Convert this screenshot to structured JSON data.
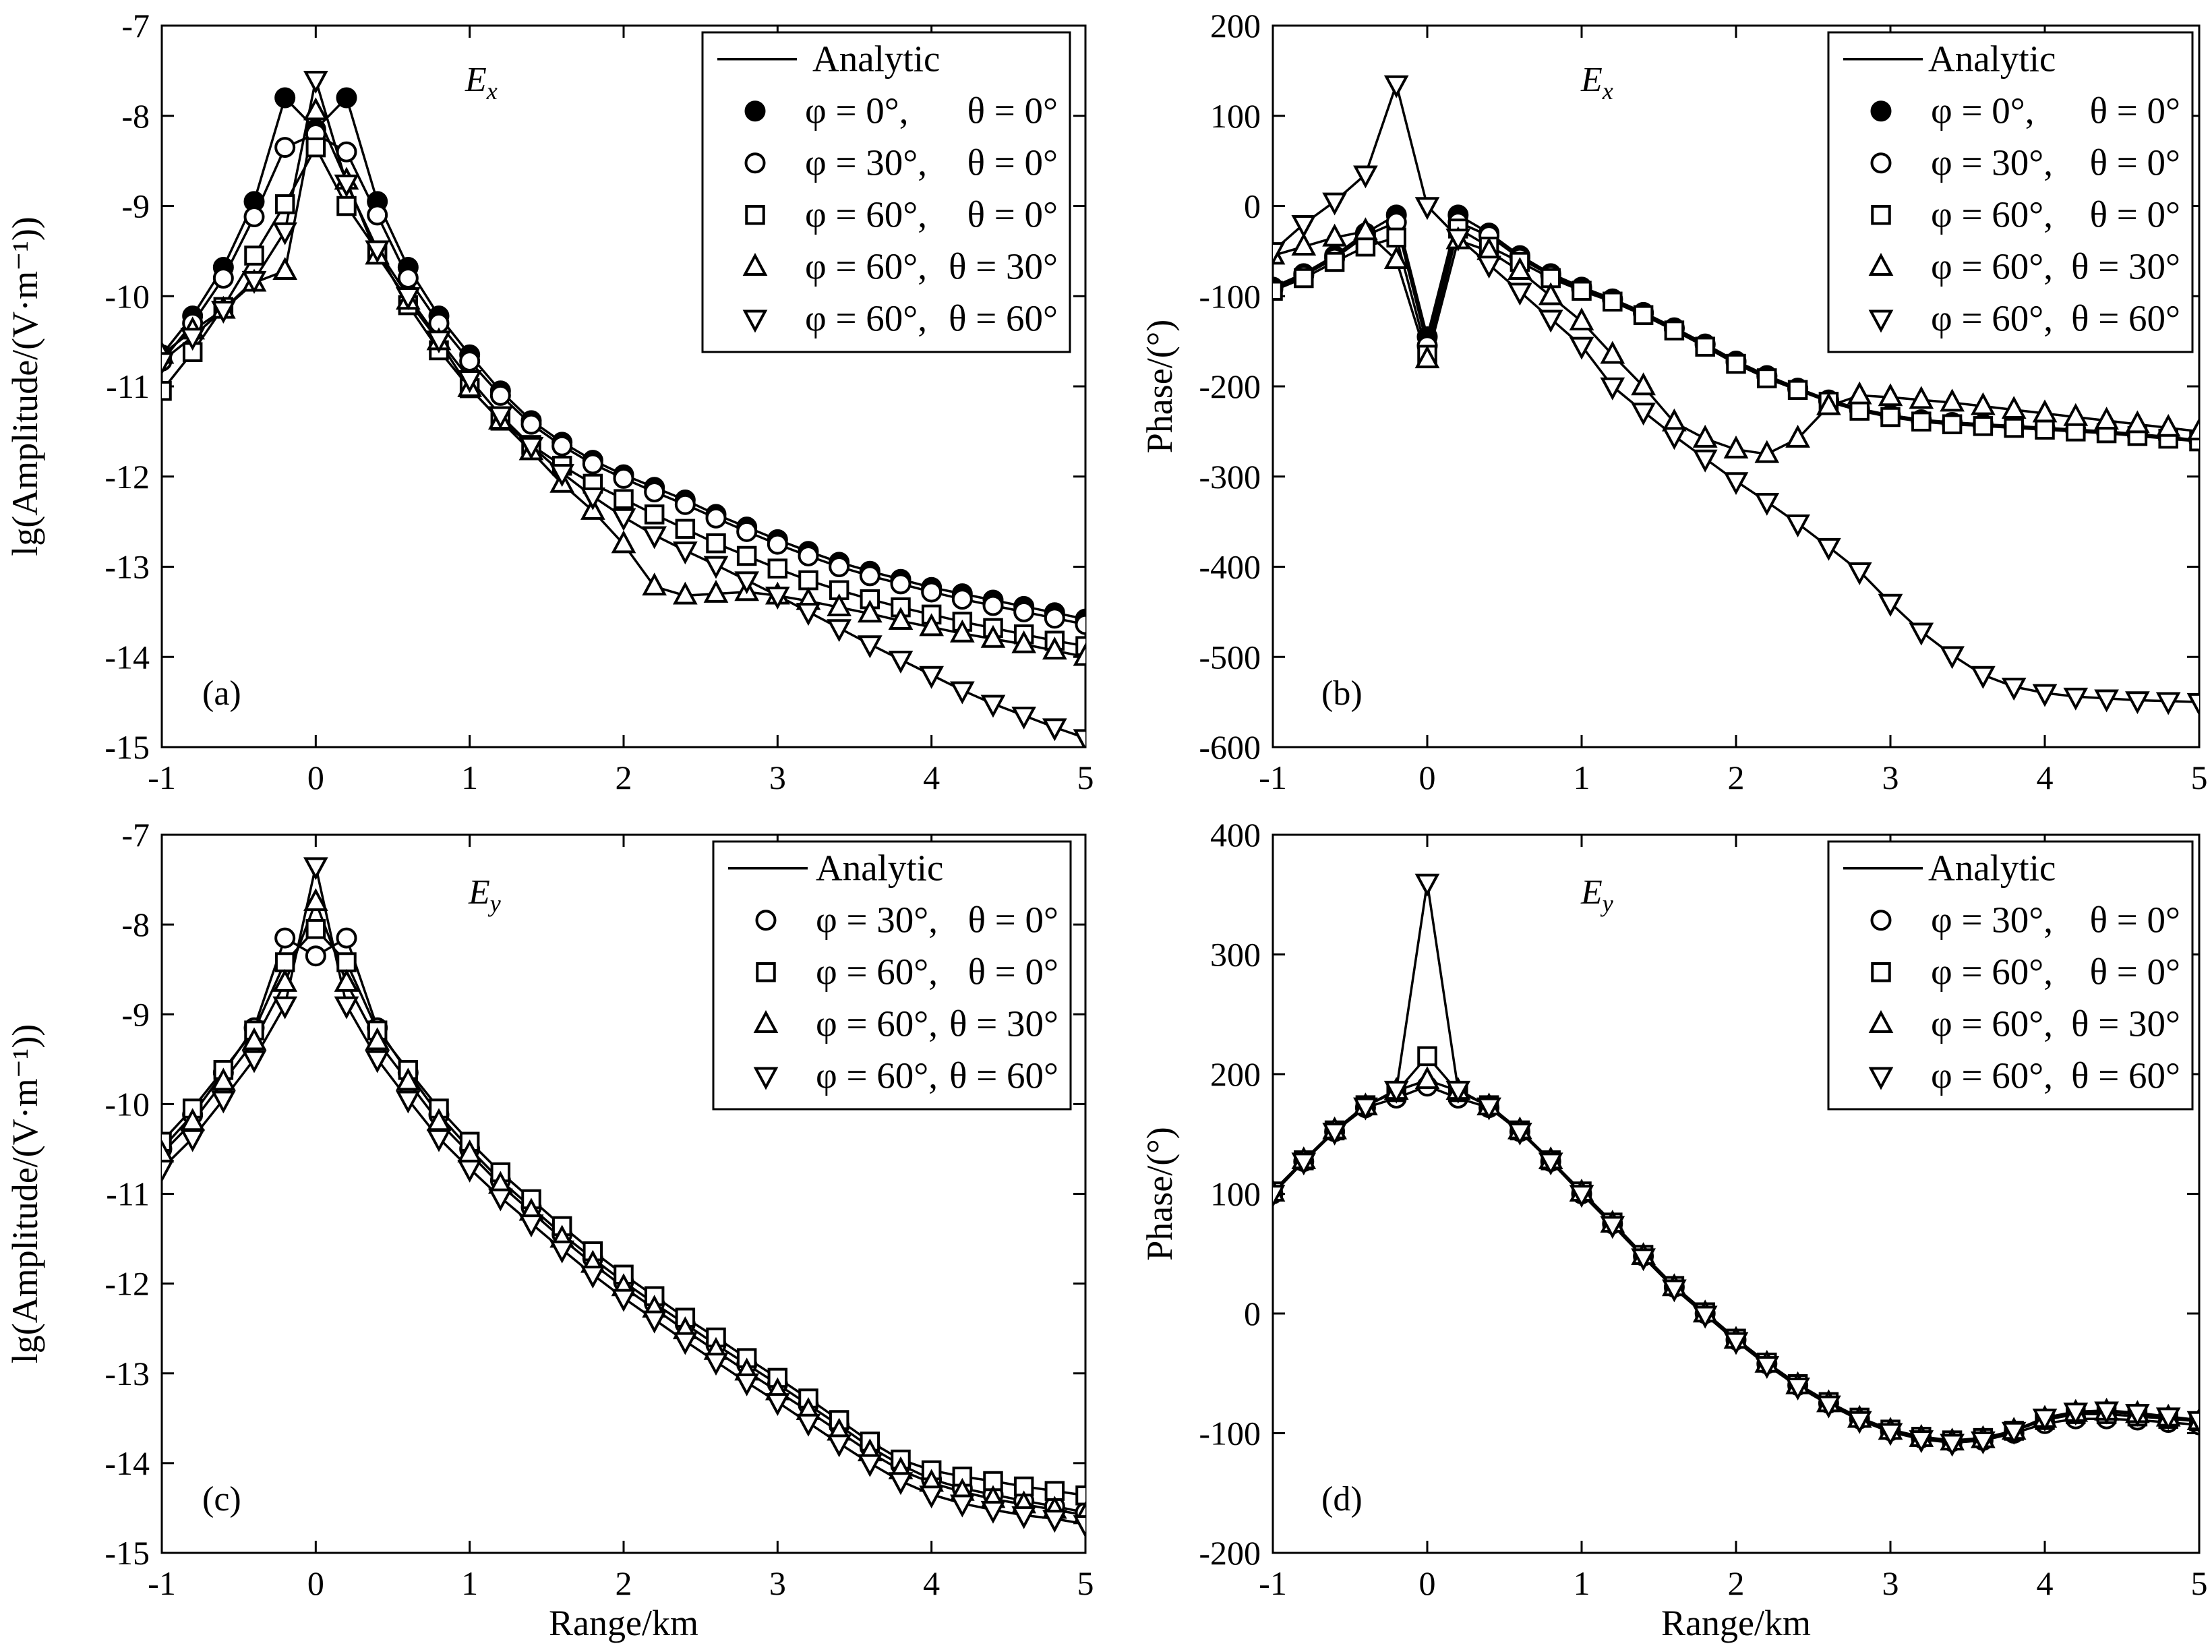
{
  "figure": {
    "panel_count": 4
  },
  "chart_data": [
    {
      "id": "a",
      "type": "line",
      "panel_label": "(a)",
      "title_symbol": "E",
      "title_sub": "x",
      "xlabel": "",
      "ylabel": "lg(Amplitude/(V·m⁻¹))",
      "xlim": [
        -1,
        5
      ],
      "ylim": [
        -15,
        -7
      ],
      "xticks": [
        "-1",
        "0",
        "1",
        "2",
        "3",
        "4",
        "5"
      ],
      "yticks": [
        "-7",
        "-8",
        "-9",
        "-10",
        "-11",
        "-12",
        "-13",
        "-14",
        "-15"
      ],
      "x": [
        -1,
        -0.8,
        -0.6,
        -0.4,
        -0.2,
        0,
        0.2,
        0.4,
        0.6,
        0.8,
        1,
        1.2,
        1.4,
        1.6,
        1.8,
        2,
        2.2,
        2.4,
        2.6,
        2.8,
        3,
        3.2,
        3.4,
        3.6,
        3.8,
        4,
        4.2,
        4.4,
        4.6,
        4.8,
        5
      ],
      "legend": {
        "title": "Analytic",
        "entries": [
          {
            "marker": "filled-circle",
            "phi": "φ = 0°,",
            "theta": "θ = 0°"
          },
          {
            "marker": "circle",
            "phi": "φ = 30°,",
            "theta": "θ = 0°"
          },
          {
            "marker": "square",
            "phi": "φ = 60°,",
            "theta": "θ = 0°"
          },
          {
            "marker": "triangle-up",
            "phi": "φ = 60°,",
            "theta": "θ = 30°"
          },
          {
            "marker": "triangle-down",
            "phi": "φ = 60°,",
            "theta": "θ = 60°"
          }
        ]
      },
      "series": [
        {
          "name": "φ = 0°, θ = 0°",
          "marker": "filled-circle",
          "values": [
            -10.65,
            -10.22,
            -9.68,
            -8.95,
            -7.8,
            -8.15,
            -7.8,
            -8.95,
            -9.68,
            -10.22,
            -10.65,
            -11.05,
            -11.38,
            -11.62,
            -11.82,
            -11.98,
            -12.12,
            -12.26,
            -12.42,
            -12.56,
            -12.7,
            -12.83,
            -12.95,
            -13.05,
            -13.14,
            -13.23,
            -13.3,
            -13.37,
            -13.44,
            -13.51,
            -13.58
          ]
        },
        {
          "name": "φ = 30°, θ = 0°",
          "marker": "circle",
          "values": [
            -10.72,
            -10.3,
            -9.8,
            -9.12,
            -8.35,
            -8.2,
            -8.4,
            -9.1,
            -9.8,
            -10.3,
            -10.72,
            -11.1,
            -11.42,
            -11.66,
            -11.86,
            -12.02,
            -12.17,
            -12.31,
            -12.46,
            -12.61,
            -12.75,
            -12.88,
            -13.0,
            -13.1,
            -13.19,
            -13.28,
            -13.36,
            -13.43,
            -13.5,
            -13.57,
            -13.64
          ]
        },
        {
          "name": "φ = 60°, θ = 0°",
          "marker": "square",
          "values": [
            -11.05,
            -10.62,
            -10.12,
            -9.55,
            -8.98,
            -8.35,
            -9.0,
            -9.5,
            -10.1,
            -10.6,
            -11.02,
            -11.38,
            -11.65,
            -11.88,
            -12.08,
            -12.25,
            -12.42,
            -12.58,
            -12.74,
            -12.88,
            -13.02,
            -13.15,
            -13.26,
            -13.36,
            -13.45,
            -13.53,
            -13.61,
            -13.68,
            -13.75,
            -13.82,
            -13.88
          ]
        },
        {
          "name": "φ = 60°, θ = 30°",
          "marker": "triangle-up",
          "values": [
            -10.65,
            -10.38,
            -10.15,
            -9.85,
            -9.72,
            -7.95,
            -8.72,
            -9.55,
            -10.05,
            -10.5,
            -11.02,
            -11.38,
            -11.72,
            -12.08,
            -12.38,
            -12.75,
            -13.22,
            -13.32,
            -13.3,
            -13.28,
            -13.32,
            -13.38,
            -13.45,
            -13.52,
            -13.6,
            -13.67,
            -13.74,
            -13.8,
            -13.86,
            -13.93,
            -14.0
          ]
        },
        {
          "name": "φ = 60°, θ = 60°",
          "marker": "triangle-down",
          "values": [
            -10.72,
            -10.45,
            -10.15,
            -9.82,
            -9.28,
            -7.6,
            -8.75,
            -9.48,
            -10.0,
            -10.48,
            -10.92,
            -11.32,
            -11.66,
            -11.96,
            -12.22,
            -12.45,
            -12.65,
            -12.82,
            -12.98,
            -13.15,
            -13.32,
            -13.5,
            -13.68,
            -13.86,
            -14.03,
            -14.2,
            -14.37,
            -14.52,
            -14.65,
            -14.78,
            -14.9
          ]
        }
      ]
    },
    {
      "id": "b",
      "type": "line",
      "panel_label": "(b)",
      "title_symbol": "E",
      "title_sub": "x",
      "xlabel": "",
      "ylabel": "Phase/(°)",
      "xlim": [
        -1,
        5
      ],
      "ylim": [
        -600,
        200
      ],
      "xticks": [
        "-1",
        "0",
        "1",
        "2",
        "3",
        "4",
        "5"
      ],
      "yticks": [
        "200",
        "100",
        "0",
        "-100",
        "-200",
        "-300",
        "-400",
        "-500",
        "-600"
      ],
      "x": [
        -1,
        -0.8,
        -0.6,
        -0.4,
        -0.2,
        0,
        0.2,
        0.4,
        0.6,
        0.8,
        1,
        1.2,
        1.4,
        1.6,
        1.8,
        2,
        2.2,
        2.4,
        2.6,
        2.8,
        3,
        3.2,
        3.4,
        3.6,
        3.8,
        4,
        4.2,
        4.4,
        4.6,
        4.8,
        5
      ],
      "legend": {
        "title": "Analytic",
        "entries": [
          {
            "marker": "filled-circle",
            "phi": "φ = 0°,",
            "theta": "θ = 0°"
          },
          {
            "marker": "circle",
            "phi": "φ = 30°,",
            "theta": "θ = 0°"
          },
          {
            "marker": "square",
            "phi": "φ = 60°,",
            "theta": "θ = 0°"
          },
          {
            "marker": "triangle-up",
            "phi": "φ = 60°,",
            "theta": "θ = 30°"
          },
          {
            "marker": "triangle-down",
            "phi": "φ = 60°,",
            "theta": "θ = 60°"
          }
        ]
      },
      "series": [
        {
          "name": "φ = 0°, θ = 0°",
          "marker": "filled-circle",
          "values": [
            -90,
            -75,
            -55,
            -30,
            -10,
            -145,
            -10,
            -30,
            -55,
            -75,
            -90,
            -103,
            -118,
            -135,
            -153,
            -172,
            -188,
            -202,
            -215,
            -225,
            -232,
            -237,
            -240,
            -242,
            -244,
            -246,
            -248,
            -250,
            -253,
            -256,
            -260
          ]
        },
        {
          "name": "φ = 30°, θ = 0°",
          "marker": "circle",
          "values": [
            -92,
            -77,
            -58,
            -33,
            -18,
            -155,
            -18,
            -33,
            -58,
            -77,
            -92,
            -104,
            -119,
            -136,
            -154,
            -173,
            -189,
            -203,
            -216,
            -226,
            -233,
            -238,
            -241,
            -243,
            -245,
            -247,
            -249,
            -251,
            -254,
            -257,
            -260
          ]
        },
        {
          "name": "φ = 60°, θ = 0°",
          "marker": "square",
          "values": [
            -94,
            -80,
            -62,
            -45,
            -35,
            -165,
            -25,
            -45,
            -62,
            -80,
            -94,
            -106,
            -121,
            -138,
            -156,
            -175,
            -191,
            -204,
            -217,
            -227,
            -234,
            -239,
            -242,
            -244,
            -246,
            -248,
            -250,
            -252,
            -255,
            -258,
            -261
          ]
        },
        {
          "name": "φ = 60°, θ = 30°",
          "marker": "triangle-up",
          "values": [
            -55,
            -45,
            -35,
            -28,
            -60,
            -170,
            -38,
            -50,
            -72,
            -100,
            -128,
            -165,
            -200,
            -240,
            -258,
            -270,
            -275,
            -258,
            -222,
            -210,
            -212,
            -215,
            -218,
            -222,
            -226,
            -230,
            -234,
            -238,
            -242,
            -246,
            -250
          ]
        },
        {
          "name": "φ = 60°, θ = 60°",
          "marker": "triangle-down",
          "values": [
            -50,
            -20,
            5,
            35,
            135,
            0,
            -35,
            -65,
            -95,
            -125,
            -155,
            -200,
            -228,
            -255,
            -280,
            -305,
            -328,
            -352,
            -378,
            -405,
            -440,
            -472,
            -498,
            -520,
            -533,
            -540,
            -544,
            -546,
            -548,
            -549,
            -550
          ]
        }
      ]
    },
    {
      "id": "c",
      "type": "line",
      "panel_label": "(c)",
      "title_symbol": "E",
      "title_sub": "y",
      "xlabel": "Range/km",
      "ylabel": "lg(Amplitude/(V·m⁻¹))",
      "xlim": [
        -1,
        5
      ],
      "ylim": [
        -15,
        -7
      ],
      "xticks": [
        "-1",
        "0",
        "1",
        "2",
        "3",
        "4",
        "5"
      ],
      "yticks": [
        "-7",
        "-8",
        "-9",
        "-10",
        "-11",
        "-12",
        "-13",
        "-14",
        "-15"
      ],
      "x": [
        -1,
        -0.8,
        -0.6,
        -0.4,
        -0.2,
        0,
        0.2,
        0.4,
        0.6,
        0.8,
        1,
        1.2,
        1.4,
        1.6,
        1.8,
        2,
        2.2,
        2.4,
        2.6,
        2.8,
        3,
        3.2,
        3.4,
        3.6,
        3.8,
        4,
        4.2,
        4.4,
        4.6,
        4.8,
        5
      ],
      "legend": {
        "title": "Analytic",
        "entries": [
          {
            "marker": "circle",
            "phi": "φ = 30°,",
            "theta": "θ = 0°"
          },
          {
            "marker": "square",
            "phi": "φ = 60°,",
            "theta": "θ = 0°"
          },
          {
            "marker": "triangle-up",
            "phi": "φ = 60°,",
            "theta": "θ = 30°"
          },
          {
            "marker": "triangle-down",
            "phi": "φ = 60°,",
            "theta": "θ = 60°"
          }
        ]
      },
      "series": [
        {
          "name": "φ = 30°, θ = 0°",
          "marker": "circle",
          "values": [
            -10.5,
            -10.12,
            -9.65,
            -9.15,
            -8.15,
            -8.35,
            -8.15,
            -9.15,
            -9.65,
            -10.12,
            -10.5,
            -10.85,
            -11.15,
            -11.45,
            -11.72,
            -11.98,
            -12.22,
            -12.45,
            -12.68,
            -12.9,
            -13.12,
            -13.35,
            -13.58,
            -13.82,
            -14.02,
            -14.18,
            -14.28,
            -14.35,
            -14.42,
            -14.48,
            -14.55
          ]
        },
        {
          "name": "φ = 60°, θ = 0°",
          "marker": "square",
          "values": [
            -10.42,
            -10.05,
            -9.62,
            -9.18,
            -8.42,
            -8.05,
            -8.42,
            -9.18,
            -9.62,
            -10.05,
            -10.42,
            -10.76,
            -11.06,
            -11.36,
            -11.64,
            -11.9,
            -12.14,
            -12.38,
            -12.6,
            -12.83,
            -13.05,
            -13.28,
            -13.52,
            -13.76,
            -13.96,
            -14.08,
            -14.15,
            -14.2,
            -14.26,
            -14.31,
            -14.36
          ]
        },
        {
          "name": "φ = 60°, θ = 30°",
          "marker": "triangle-up",
          "values": [
            -10.55,
            -10.2,
            -9.75,
            -9.3,
            -8.65,
            -7.75,
            -8.65,
            -9.3,
            -9.75,
            -10.2,
            -10.55,
            -10.9,
            -11.2,
            -11.5,
            -11.78,
            -12.04,
            -12.28,
            -12.52,
            -12.75,
            -12.98,
            -13.2,
            -13.42,
            -13.65,
            -13.88,
            -14.08,
            -14.22,
            -14.32,
            -14.4,
            -14.46,
            -14.52,
            -14.58
          ]
        },
        {
          "name": "φ = 60°, θ = 60°",
          "marker": "triangle-down",
          "values": [
            -10.72,
            -10.38,
            -9.95,
            -9.5,
            -8.9,
            -7.35,
            -8.9,
            -9.5,
            -9.95,
            -10.38,
            -10.72,
            -11.04,
            -11.33,
            -11.62,
            -11.9,
            -12.16,
            -12.4,
            -12.64,
            -12.87,
            -13.1,
            -13.32,
            -13.55,
            -13.78,
            -14.0,
            -14.2,
            -14.35,
            -14.45,
            -14.52,
            -14.58,
            -14.62,
            -14.68
          ]
        }
      ]
    },
    {
      "id": "d",
      "type": "line",
      "panel_label": "(d)",
      "title_symbol": "E",
      "title_sub": "y",
      "xlabel": "Range/km",
      "ylabel": "Phase/(°)",
      "xlim": [
        -1,
        5
      ],
      "ylim": [
        -200,
        400
      ],
      "xticks": [
        "-1",
        "0",
        "1",
        "2",
        "3",
        "4",
        "5"
      ],
      "yticks": [
        "400",
        "300",
        "200",
        "100",
        "0",
        "-100",
        "-200"
      ],
      "x": [
        -1,
        -0.8,
        -0.6,
        -0.4,
        -0.2,
        0,
        0.2,
        0.4,
        0.6,
        0.8,
        1,
        1.2,
        1.4,
        1.6,
        1.8,
        2,
        2.2,
        2.4,
        2.6,
        2.8,
        3,
        3.2,
        3.4,
        3.6,
        3.8,
        4,
        4.2,
        4.4,
        4.6,
        4.8,
        5
      ],
      "legend": {
        "title": "Analytic",
        "entries": [
          {
            "marker": "circle",
            "phi": "φ = 30°,",
            "theta": "θ = 0°"
          },
          {
            "marker": "square",
            "phi": "φ = 60°,",
            "theta": "θ = 0°"
          },
          {
            "marker": "triangle-up",
            "phi": "φ = 60°,",
            "theta": "θ = 30°"
          },
          {
            "marker": "triangle-down",
            "phi": "φ = 60°,",
            "theta": "θ = 60°"
          }
        ]
      },
      "series": [
        {
          "name": "φ = 30°, θ = 0°",
          "marker": "circle",
          "values": [
            100,
            127,
            152,
            172,
            180,
            190,
            180,
            172,
            152,
            127,
            100,
            75,
            48,
            22,
            0,
            -22,
            -42,
            -60,
            -75,
            -88,
            -98,
            -104,
            -107,
            -106,
            -100,
            -92,
            -88,
            -88,
            -89,
            -91,
            -93
          ]
        },
        {
          "name": "φ = 60°, θ = 0°",
          "marker": "square",
          "values": [
            102,
            128,
            153,
            174,
            185,
            215,
            185,
            174,
            153,
            128,
            102,
            76,
            49,
            23,
            1,
            -21,
            -41,
            -59,
            -74,
            -87,
            -97,
            -103,
            -106,
            -104,
            -98,
            -89,
            -84,
            -84,
            -86,
            -88,
            -90
          ]
        },
        {
          "name": "φ = 60°, θ = 30°",
          "marker": "triangle-up",
          "values": [
            101,
            128,
            153,
            173,
            186,
            195,
            186,
            173,
            153,
            128,
            101,
            75,
            48,
            22,
            0,
            -22,
            -42,
            -60,
            -75,
            -88,
            -98,
            -104,
            -107,
            -105,
            -98,
            -88,
            -83,
            -82,
            -84,
            -87,
            -90
          ]
        },
        {
          "name": "φ = 60°, θ = 60°",
          "marker": "triangle-down",
          "values": [
            100,
            127,
            152,
            173,
            187,
            360,
            187,
            173,
            152,
            127,
            100,
            74,
            47,
            21,
            -1,
            -23,
            -43,
            -61,
            -76,
            -89,
            -99,
            -105,
            -108,
            -106,
            -98,
            -87,
            -82,
            -81,
            -83,
            -86,
            -89
          ]
        }
      ]
    }
  ]
}
